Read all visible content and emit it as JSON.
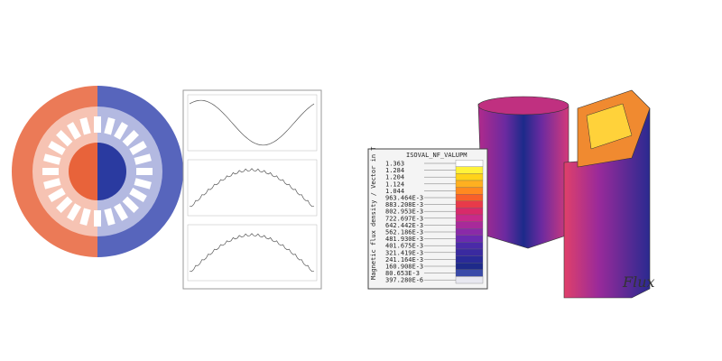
{
  "legend": {
    "header": "ISOVAL_NF_VALUPM",
    "axis_label": "Magnetic flux density / Vector in T",
    "values": [
      "1.363",
      "1.284",
      "1.204",
      "1.124",
      "1.044",
      "963.464E-3",
      "883.208E-3",
      "802.953E-3",
      "722.697E-3",
      "642.442E-3",
      "562.186E-3",
      "481.930E-3",
      "401.675E-3",
      "321.419E-3",
      "241.164E-3",
      "160.908E-3",
      "80.653E-3",
      "397.280E-6"
    ]
  },
  "logo": "Flux"
}
